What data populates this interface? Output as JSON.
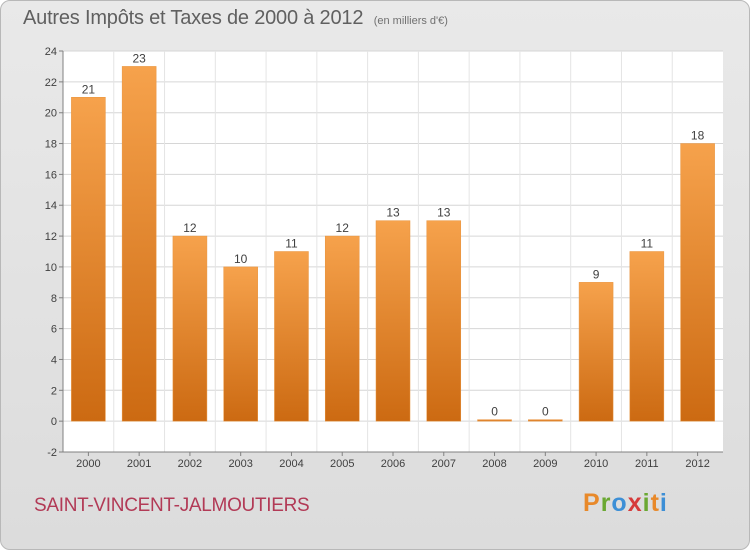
{
  "header": {
    "title": "Autres Impôts et Taxes de 2000 à 2012",
    "subtitle": "(en milliers d'€)"
  },
  "footer": {
    "commune": "SAINT-VINCENT-JALMOUTIERS",
    "logo_text": "Proxiti"
  },
  "colors": {
    "bar_top": "#f6a24c",
    "bar_bottom": "#cc6a12",
    "commune": "#b23a56",
    "logo_letters": [
      "#e8892a",
      "#6aa832",
      "#3d8fd6",
      "#d63a3a",
      "#6aa832",
      "#e8892a",
      "#3d8fd6"
    ]
  },
  "chart_data": {
    "type": "bar",
    "categories": [
      "2000",
      "2001",
      "2002",
      "2003",
      "2004",
      "2005",
      "2006",
      "2007",
      "2008",
      "2009",
      "2010",
      "2011",
      "2012"
    ],
    "values": [
      21,
      23,
      12,
      10,
      11,
      12,
      13,
      13,
      0,
      0,
      9,
      11,
      18
    ],
    "ylim": [
      -2,
      24
    ],
    "yticks": [
      -2,
      0,
      2,
      4,
      6,
      8,
      10,
      12,
      14,
      16,
      18,
      20,
      22,
      24
    ],
    "grid": true,
    "legend": "none"
  }
}
